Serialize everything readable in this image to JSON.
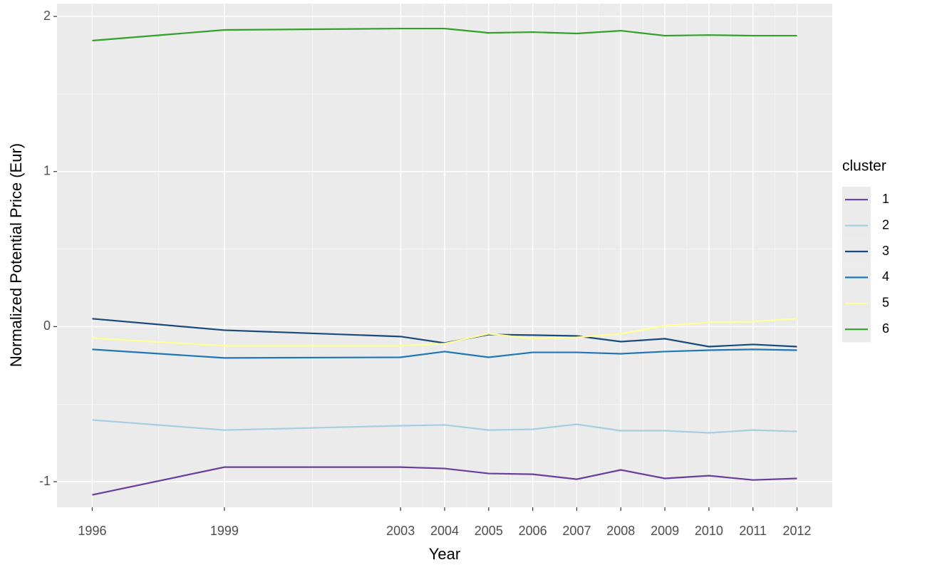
{
  "chart_data": {
    "type": "line",
    "x_label": "Year",
    "y_label": "Normalized Potential Price (Eur)",
    "x": [
      1996,
      1999,
      2003,
      2004,
      2005,
      2006,
      2007,
      2008,
      2009,
      2010,
      2011,
      2012
    ],
    "xlim": [
      1995.2,
      2012.8
    ],
    "xticks": [
      1996,
      1999,
      2003,
      2004,
      2005,
      2006,
      2007,
      2008,
      2009,
      2010,
      2011,
      2012
    ],
    "ylim": [
      -1.165,
      2.083
    ],
    "yticks": [
      -1,
      0,
      1,
      2
    ],
    "grid": true,
    "legend_title": "cluster",
    "legend_position": "right",
    "series": [
      {
        "name": "1",
        "color": "#6a3d9a",
        "values": [
          -1.085,
          -0.906,
          -0.906,
          -0.915,
          -0.947,
          -0.952,
          -0.984,
          -0.924,
          -0.979,
          -0.961,
          -0.989,
          -0.979
        ]
      },
      {
        "name": "2",
        "color": "#a6cee3",
        "values": [
          -0.602,
          -0.667,
          -0.639,
          -0.634,
          -0.667,
          -0.662,
          -0.63,
          -0.671,
          -0.671,
          -0.685,
          -0.667,
          -0.676
        ]
      },
      {
        "name": "3",
        "color": "#1a4a7a",
        "values": [
          0.051,
          -0.023,
          -0.064,
          -0.106,
          -0.051,
          -0.055,
          -0.06,
          -0.097,
          -0.078,
          -0.129,
          -0.115,
          -0.129
        ]
      },
      {
        "name": "4",
        "color": "#1f78b4",
        "values": [
          -0.147,
          -0.202,
          -0.198,
          -0.161,
          -0.198,
          -0.166,
          -0.166,
          -0.175,
          -0.161,
          -0.152,
          -0.147,
          -0.152
        ]
      },
      {
        "name": "5",
        "color": "#ffff99",
        "values": [
          -0.074,
          -0.124,
          -0.124,
          -0.11,
          -0.046,
          -0.078,
          -0.069,
          -0.046,
          0.005,
          0.028,
          0.032,
          0.051
        ]
      },
      {
        "name": "6",
        "color": "#33a02c",
        "values": [
          1.844,
          1.913,
          1.922,
          1.922,
          1.894,
          1.899,
          1.89,
          1.908,
          1.876,
          1.88,
          1.876,
          1.876
        ]
      }
    ]
  }
}
